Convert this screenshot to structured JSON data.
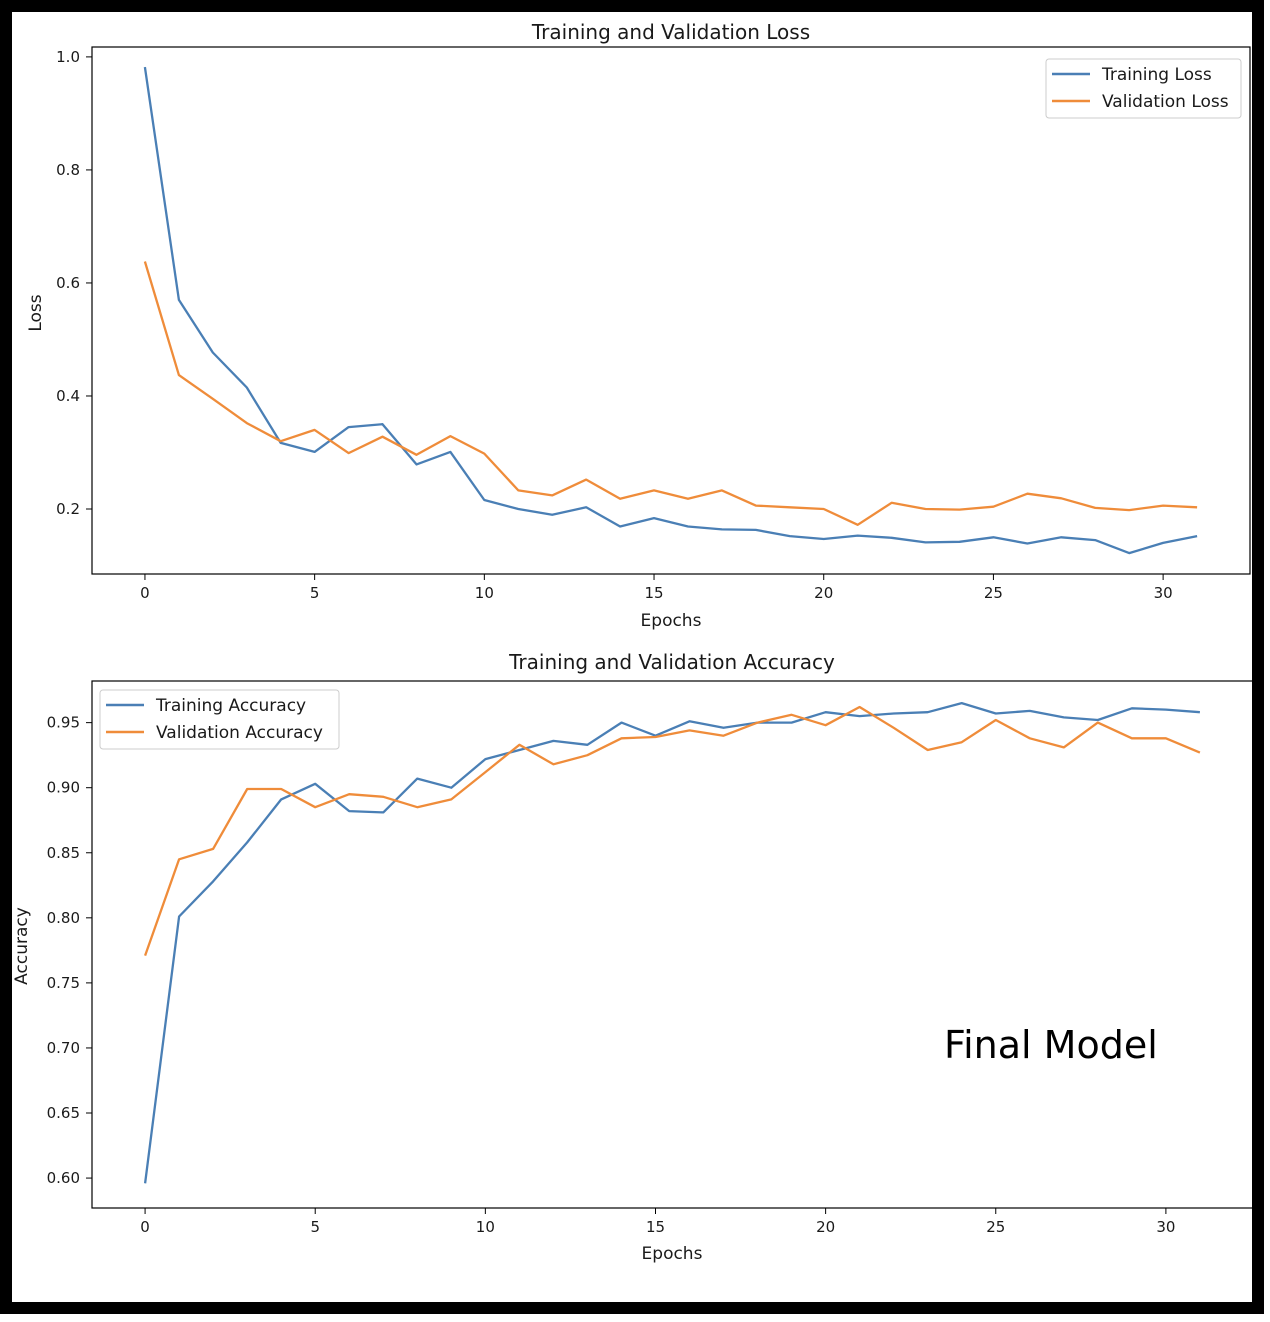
{
  "annotation": "Final Model",
  "colors": {
    "training": "#4a7fb5",
    "validation": "#ef8c3a",
    "border": "#000000"
  },
  "chart_data": [
    {
      "type": "line",
      "title": "Training and Validation Loss",
      "xlabel": "Epochs",
      "ylabel": "Loss",
      "xlim": [
        -1.56,
        32.56
      ],
      "ylim": [
        0.085,
        1.0175
      ],
      "xticks": [
        0,
        5,
        10,
        15,
        20,
        25,
        30
      ],
      "yticks": [
        0.2,
        0.4,
        0.6,
        0.8,
        1.0
      ],
      "ytick_labels": [
        "0.2",
        "0.4",
        "0.6",
        "0.8",
        "1.0"
      ],
      "legend": "upper-right",
      "x": [
        0,
        1,
        2,
        3,
        4,
        5,
        6,
        7,
        8,
        9,
        10,
        11,
        12,
        13,
        14,
        15,
        16,
        17,
        18,
        19,
        20,
        21,
        22,
        23,
        24,
        25,
        26,
        27,
        28,
        29,
        30,
        31
      ],
      "series": [
        {
          "name": "Training Loss",
          "color": "#4a7fb5",
          "values": [
            0.982,
            0.57,
            0.477,
            0.415,
            0.317,
            0.301,
            0.345,
            0.35,
            0.279,
            0.301,
            0.216,
            0.2,
            0.19,
            0.203,
            0.169,
            0.184,
            0.169,
            0.164,
            0.163,
            0.152,
            0.147,
            0.153,
            0.149,
            0.141,
            0.142,
            0.15,
            0.139,
            0.15,
            0.145,
            0.122,
            0.14,
            0.152
          ]
        },
        {
          "name": "Validation Loss",
          "color": "#ef8c3a",
          "values": [
            0.638,
            0.437,
            0.395,
            0.352,
            0.32,
            0.34,
            0.299,
            0.328,
            0.296,
            0.329,
            0.298,
            0.233,
            0.224,
            0.252,
            0.218,
            0.233,
            0.218,
            0.233,
            0.206,
            0.203,
            0.2,
            0.172,
            0.211,
            0.2,
            0.199,
            0.204,
            0.227,
            0.219,
            0.202,
            0.198,
            0.206,
            0.203
          ]
        }
      ]
    },
    {
      "type": "line",
      "title": "Training and Validation Accuracy",
      "xlabel": "Epochs",
      "ylabel": "Accuracy",
      "xlim": [
        -1.56,
        32.56
      ],
      "ylim": [
        0.577,
        0.982
      ],
      "xticks": [
        0,
        5,
        10,
        15,
        20,
        25,
        30
      ],
      "yticks": [
        0.6,
        0.65,
        0.7,
        0.75,
        0.8,
        0.85,
        0.9,
        0.95
      ],
      "ytick_labels": [
        "0.60",
        "0.65",
        "0.70",
        "0.75",
        "0.80",
        "0.85",
        "0.90",
        "0.95"
      ],
      "legend": "upper-left",
      "x": [
        0,
        1,
        2,
        3,
        4,
        5,
        6,
        7,
        8,
        9,
        10,
        11,
        12,
        13,
        14,
        15,
        16,
        17,
        18,
        19,
        20,
        21,
        22,
        23,
        24,
        25,
        26,
        27,
        28,
        29,
        30,
        31
      ],
      "series": [
        {
          "name": "Training Accuracy",
          "color": "#4a7fb5",
          "values": [
            0.596,
            0.801,
            0.828,
            0.858,
            0.891,
            0.903,
            0.882,
            0.881,
            0.907,
            0.9,
            0.922,
            0.929,
            0.936,
            0.933,
            0.95,
            0.94,
            0.951,
            0.946,
            0.95,
            0.95,
            0.958,
            0.955,
            0.957,
            0.958,
            0.965,
            0.957,
            0.959,
            0.954,
            0.952,
            0.961,
            0.96,
            0.958
          ]
        },
        {
          "name": "Validation Accuracy",
          "color": "#ef8c3a",
          "values": [
            0.771,
            0.845,
            0.853,
            0.899,
            0.899,
            0.885,
            0.895,
            0.893,
            0.885,
            0.891,
            0.912,
            0.933,
            0.918,
            0.925,
            0.938,
            0.939,
            0.944,
            0.94,
            0.95,
            0.956,
            0.948,
            0.962,
            0.946,
            0.929,
            0.935,
            0.952,
            0.938,
            0.931,
            0.95,
            0.938,
            0.938,
            0.927
          ]
        }
      ]
    }
  ]
}
